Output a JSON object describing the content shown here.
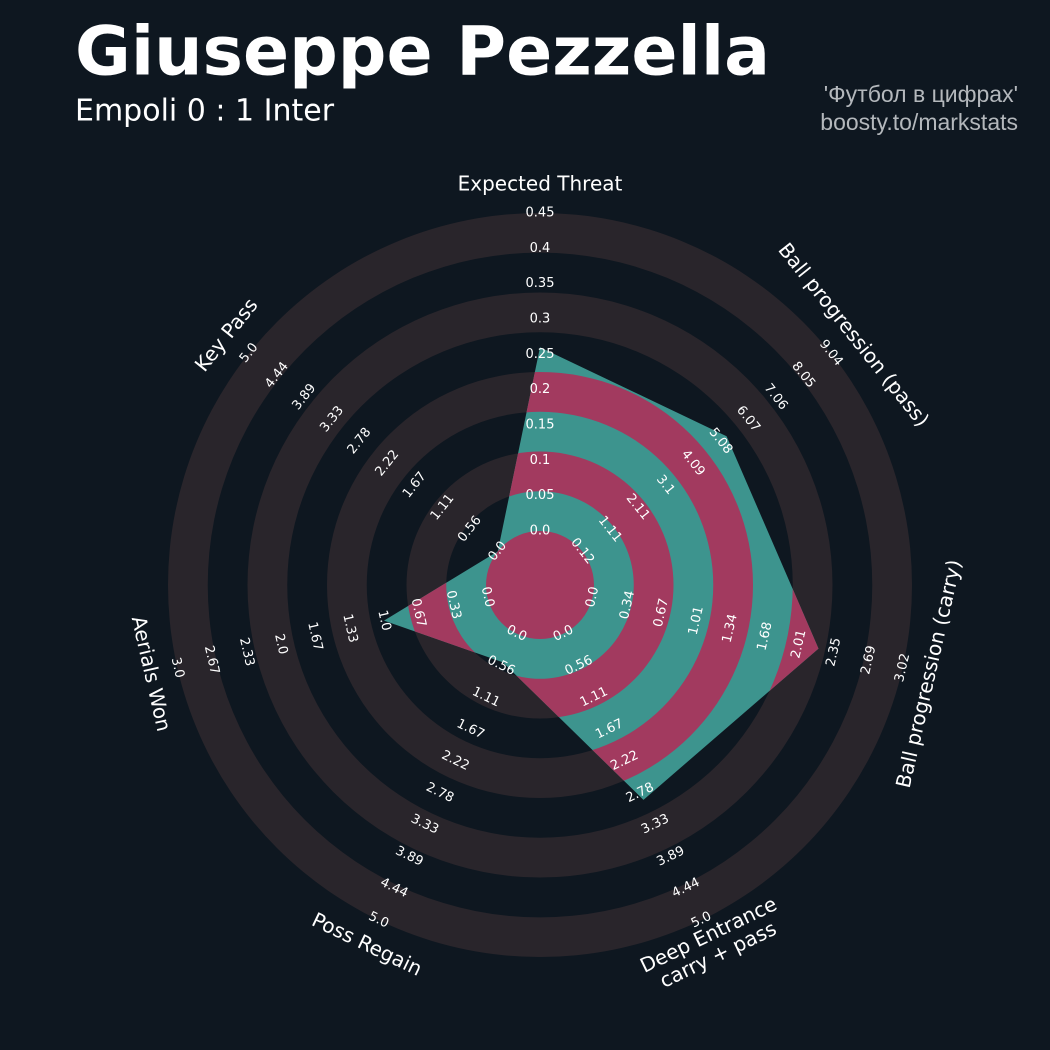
{
  "chart_data": {
    "type": "radar",
    "title": "Giuseppe Pezzella",
    "subtitle": "Empoli 0 : 1 Inter",
    "credits": [
      "'Футбол в цифрах'",
      "boosty.to/markstats"
    ],
    "categories": [
      "Expected Threat",
      "Ball progression (pass)",
      "Ball progression (carry)",
      "Deep Entrance\ncarry + pass",
      "Poss Regain",
      "Aerials Won",
      "Key Pass"
    ],
    "lims": [
      [
        0,
        0.45
      ],
      [
        0.12,
        9.04
      ],
      [
        0,
        3.02
      ],
      [
        0,
        5
      ],
      [
        0,
        5
      ],
      [
        0,
        3
      ],
      [
        0,
        5
      ]
    ],
    "ticks": [
      [
        {
          "value": 0,
          "label": "0.0"
        },
        0.05,
        0.1,
        0.15,
        0.2,
        0.25,
        0.3,
        0.35,
        0.4,
        0.45
      ],
      [
        0.12,
        1.11,
        2.11,
        3.1,
        4.09,
        5.08,
        6.07,
        7.06,
        8.05,
        9.04
      ],
      [
        {
          "value": 0,
          "label": "0.0"
        },
        0.34,
        0.67,
        1.01,
        1.34,
        1.68,
        2.01,
        2.35,
        2.69,
        3.02
      ],
      [
        {
          "value": 0,
          "label": "0.0"
        },
        0.56,
        1.11,
        1.67,
        2.22,
        2.78,
        3.33,
        3.89,
        4.44,
        {
          "value": 5,
          "label": "5.0"
        }
      ],
      [
        {
          "value": 0,
          "label": "0.0"
        },
        0.56,
        1.11,
        1.67,
        2.22,
        2.78,
        3.33,
        3.89,
        4.44,
        {
          "value": 5,
          "label": "5.0"
        }
      ],
      [
        {
          "value": 0,
          "label": "0.0"
        },
        0.33,
        0.67,
        {
          "value": 1,
          "label": "1.0"
        },
        1.33,
        1.67,
        {
          "value": 2,
          "label": "2.0"
        },
        2.33,
        2.67,
        {
          "value": 3,
          "label": "3.0"
        }
      ],
      [
        {
          "value": 0,
          "label": "0.0"
        },
        0.56,
        1.11,
        1.67,
        2.22,
        2.78,
        3.33,
        3.89,
        4.44,
        {
          "value": 5,
          "label": "5.0"
        }
      ]
    ],
    "values": [
      0.26,
      5.3,
      2.2,
      2.9,
      0.5,
      1.0,
      0.0
    ],
    "color": "#3d948e",
    "alt_color": "#a23a5f",
    "ring_color": "#29252b"
  }
}
